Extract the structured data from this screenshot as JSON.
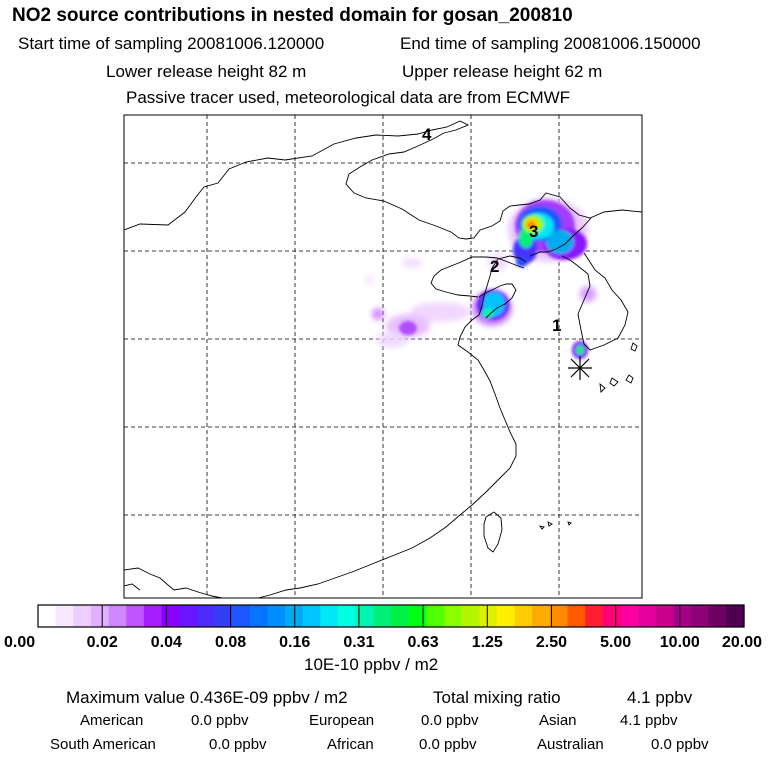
{
  "header": {
    "title": "NO2 source contributions in nested domain for gosan_200810",
    "start_label": "Start time of sampling 20081006.120000",
    "end_label": "End time of sampling 20081006.150000",
    "lower_label": "Lower release height   82 m",
    "upper_label": "Upper release height   62 m",
    "tracer_line": "Passive tracer used, meteorological data are from ECMWF"
  },
  "map": {
    "markers": [
      "1",
      "2",
      "3",
      "4"
    ],
    "receptor_icon": "asterisk-icon"
  },
  "colorbar": {
    "colors": [
      "#ffffff",
      "#f7e6ff",
      "#eccfff",
      "#e0b0ff",
      "#d088ff",
      "#bf55ff",
      "#a71eff",
      "#8a00ff",
      "#6a14ff",
      "#4f2aff",
      "#343ff5",
      "#1b56ff",
      "#0674ff",
      "#008dff",
      "#00abf0",
      "#00c3ff",
      "#00e8f5",
      "#00ffe0",
      "#00f5b4",
      "#00f07a",
      "#00f048",
      "#00ff14",
      "#50ff00",
      "#8aff00",
      "#b4f500",
      "#dcf000",
      "#fff000",
      "#ffcd00",
      "#ffaa00",
      "#ff8c00",
      "#ff5a00",
      "#ff1e32",
      "#ff0078",
      "#ff00a0",
      "#e6009b",
      "#c8008c",
      "#a50087",
      "#8c0078",
      "#6e0064",
      "#500050"
    ],
    "tick_labels": [
      "0.00",
      "0.02",
      "0.04",
      "0.08",
      "0.16",
      "0.31",
      "0.63",
      "1.25",
      "2.50",
      "5.00",
      "10.00",
      "20.00"
    ],
    "unit_label": "10E-10 ppbv / m2"
  },
  "summary": {
    "max_label": "Maximum value  0.436E-09 ppbv / m2",
    "total_label": "Total mixing ratio",
    "total_value": "4.1 ppbv",
    "rows": [
      [
        {
          "name": "American",
          "value": "0.0 ppbv"
        },
        {
          "name": "European",
          "value": "0.0 ppbv"
        },
        {
          "name": "Asian",
          "value": "4.1 ppbv"
        }
      ],
      [
        {
          "name": "South American",
          "value": "0.0 ppbv"
        },
        {
          "name": "African",
          "value": "0.0 ppbv"
        },
        {
          "name": "Australian",
          "value": "0.0 ppbv"
        }
      ]
    ]
  }
}
